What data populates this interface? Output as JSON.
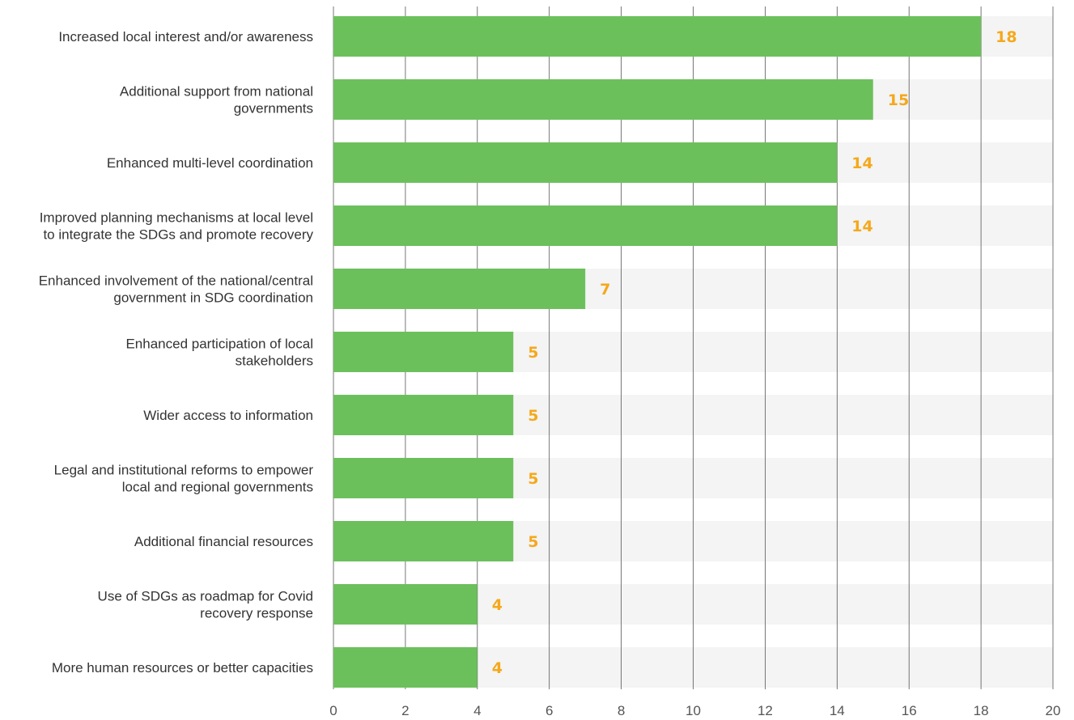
{
  "chart_data": {
    "type": "bar",
    "orientation": "horizontal",
    "categories": [
      [
        "Increased local interest and/or awareness"
      ],
      [
        "Additional support from national",
        "governments"
      ],
      [
        "Enhanced multi-level coordination"
      ],
      [
        "Improved planning mechanisms at local level",
        "to integrate the SDGs and promote recovery"
      ],
      [
        "Enhanced involvement of the national/central",
        "government in SDG coordination"
      ],
      [
        "Enhanced participation of local",
        "stakeholders"
      ],
      [
        "Wider access to information"
      ],
      [
        "Legal and institutional reforms to empower",
        "local and regional governments"
      ],
      [
        "Additional financial resources"
      ],
      [
        "Use of SDGs as roadmap for Covid",
        "recovery response"
      ],
      [
        "More human resources or better capacities"
      ]
    ],
    "values": [
      18,
      15,
      14,
      14,
      7,
      5,
      5,
      5,
      5,
      4,
      4
    ],
    "value_labels": [
      "18",
      "15",
      "14",
      "14",
      "7",
      "5",
      "5",
      "5",
      "5",
      "4",
      "4"
    ],
    "xlim": [
      0,
      20
    ],
    "xticks": [
      "0",
      "2",
      "4",
      "6",
      "8",
      "10",
      "12",
      "14",
      "16",
      "18",
      "20"
    ],
    "grid": true,
    "legend": "none",
    "colors": {
      "bar": "#6cc05c",
      "track": "#f3f4f3",
      "value_label": "#f5a81c",
      "grid": "#555555",
      "category_text": "#333333",
      "tick_text": "#555555"
    }
  }
}
